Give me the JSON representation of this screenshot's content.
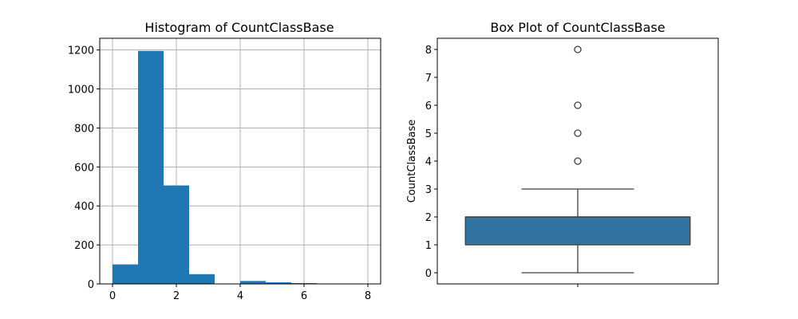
{
  "chart_data": [
    {
      "type": "bar",
      "title": "Histogram of CountClassBase",
      "xlabel": "",
      "ylabel": "",
      "grid": true,
      "xlim": [
        -0.4,
        8.4
      ],
      "ylim": [
        0,
        1260
      ],
      "xticks": [
        0,
        2,
        4,
        6,
        8
      ],
      "yticks": [
        0,
        200,
        400,
        600,
        800,
        1000,
        1200
      ],
      "bin_edges": [
        0,
        0.8,
        1.6,
        2.4,
        3.2,
        4.0,
        4.8,
        5.6,
        6.4,
        7.2,
        8.0
      ],
      "values": [
        100,
        1195,
        505,
        50,
        0,
        15,
        8,
        4,
        0,
        1
      ],
      "color": "#1f77b4"
    },
    {
      "type": "box",
      "title": "Box Plot of CountClassBase",
      "xlabel": "",
      "ylabel": "CountClassBase",
      "ylim": [
        -0.4,
        8.4
      ],
      "yticks": [
        0,
        1,
        2,
        3,
        4,
        5,
        6,
        7,
        8
      ],
      "whisker_low": 0,
      "q1": 1,
      "median": 2,
      "q3": 2,
      "whisker_high": 3,
      "outliers": [
        4,
        5,
        6,
        8
      ],
      "color": "#3274a1"
    }
  ]
}
